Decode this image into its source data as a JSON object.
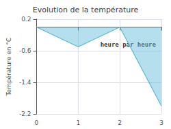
{
  "chart_data": {
    "type": "area",
    "title": "Evolution de la température",
    "ylabel": "Température en °C",
    "annotations": [
      {
        "text": "heure par heure",
        "x": 2.2,
        "y": -0.45
      }
    ],
    "x": [
      0,
      1,
      2,
      3
    ],
    "values": [
      0.0,
      -0.5,
      0.0,
      -2.0
    ],
    "color": "#5bb8d4",
    "xlim": [
      0,
      3
    ],
    "xticks": [
      0,
      1,
      2,
      3
    ],
    "ylim": [
      -2.2,
      0.2
    ],
    "yticks": [
      0.2,
      -0.6,
      -1.4,
      -2.2
    ],
    "grid": true
  }
}
